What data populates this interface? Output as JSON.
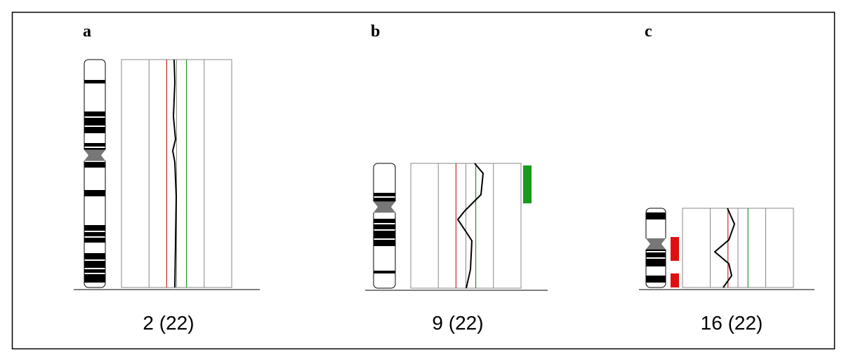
{
  "panels": [
    {
      "label": "a",
      "caption": "2 (22)"
    },
    {
      "label": "b",
      "caption": "9 (22)"
    },
    {
      "label": "c",
      "caption": "16 (22)"
    }
  ]
}
